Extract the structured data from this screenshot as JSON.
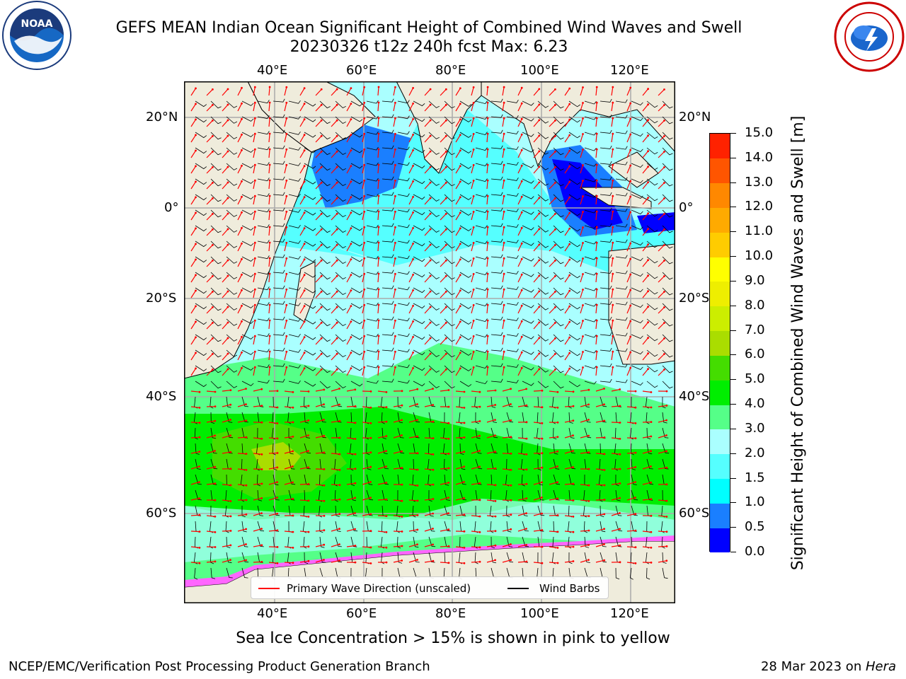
{
  "header": {
    "title_line1": "GEFS MEAN Indian Ocean Significant Height of Combined Wind Waves and Swell",
    "title_line2": "20230326 t12z 240h fcst   Max: 6.23"
  },
  "logos": {
    "left": {
      "name": "noaa-logo",
      "text": "NOAA",
      "ring_text": "NATIONAL OCEANIC AND ATMOSPHERIC ADMINISTRATION · U.S. DEPARTMENT OF COMMERCE"
    },
    "right": {
      "name": "nws-logo",
      "ring_text": "NATIONAL WEATHER SERVICE"
    }
  },
  "map": {
    "lon_labels": [
      "40°E",
      "60°E",
      "80°E",
      "100°E",
      "120°E"
    ],
    "lat_labels": [
      "20°N",
      "0°",
      "20°S",
      "40°S",
      "60°S"
    ],
    "colors": {
      "land": "#efecdc",
      "grid": "#aaaaaa",
      "wave_arrow": "#ff0000",
      "wind_barb": "#000000",
      "sea_ice": [
        "#ff66ff",
        "#ffcc33"
      ]
    },
    "legend": {
      "wave_direction": "Primary Wave Direction (unscaled)",
      "wind_barbs": "Wind Barbs"
    }
  },
  "colorbar": {
    "title": "Significant Height of Combined Wind Waves and Swell [m]",
    "tick_labels": [
      "0.0",
      "0.5",
      "1.0",
      "1.5",
      "2.0",
      "3.0",
      "4.0",
      "5.0",
      "6.0",
      "7.0",
      "8.0",
      "9.0",
      "10.0",
      "11.0",
      "12.0",
      "13.0",
      "14.0",
      "15.0"
    ],
    "colors": [
      "#0000ff",
      "#1a7fff",
      "#00ffff",
      "#55ffff",
      "#aaffff",
      "#55ff88",
      "#00ee00",
      "#44dd00",
      "#aadd00",
      "#ccee00",
      "#eeee00",
      "#ffff00",
      "#ffcc00",
      "#ffaa00",
      "#ff8800",
      "#ff5500",
      "#ff2200"
    ]
  },
  "notes": {
    "sea_ice": "Sea Ice Concentration > 15% is shown in pink to yellow",
    "producer": "NCEP/EMC/Verification Post Processing Product Generation Branch",
    "date_prefix": "28 Mar 2023 on ",
    "machine": "Hera"
  }
}
